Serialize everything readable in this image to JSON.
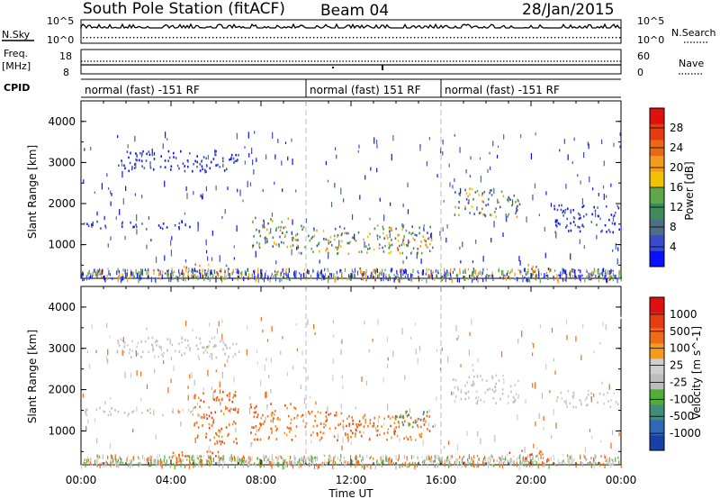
{
  "header": {
    "station": "South Pole Station (fitACF)",
    "beam": "Beam 04",
    "date": "28/Jan/2015"
  },
  "top_panels": {
    "nsky_label": "N.Sky",
    "nsky_ticks": [
      "10^5",
      "10^0"
    ],
    "nsearch_label": "N.Search",
    "nsearch_ticks": [
      "10^5",
      "10^0"
    ],
    "freq_label_1": "Freq.",
    "freq_label_2": "[MHz]",
    "freq_ticks": [
      "18",
      "8"
    ],
    "nave_label": "Nave",
    "nave_ticks": [
      "60",
      "0"
    ],
    "cpid_label": "CPID",
    "cpid_segments": [
      {
        "label": "normal (fast) -151 RF",
        "start_hour": 0,
        "end_hour": 10
      },
      {
        "label": "normal (fast) 151 RF",
        "start_hour": 10,
        "end_hour": 16
      },
      {
        "label": "normal (fast) -151 RF",
        "start_hour": 16,
        "end_hour": 24
      }
    ]
  },
  "chart_data": [
    {
      "type": "heatmap",
      "name": "Power",
      "ylabel": "Slant Range [km]",
      "xlabel": "",
      "x_range_hours": [
        0,
        24
      ],
      "ylim": [
        180,
        4500
      ],
      "yticks": [
        "1000",
        "2000",
        "3000",
        "4000"
      ],
      "colorbar_label": "Power [dB]",
      "colorbar_ticks": [
        "28",
        "24",
        "20",
        "16",
        "12",
        "8",
        "4"
      ],
      "colorbar_colors": [
        "#0a10ff",
        "#3a4bd0",
        "#4f6e86",
        "#3d8a5a",
        "#5fa84a",
        "#f2c200",
        "#f59b1c",
        "#ea6a13",
        "#ea3a12",
        "#e01010"
      ],
      "approx_echo_regions": [
        {
          "t_start": 0.1,
          "t_end": 5.0,
          "range_start": 1400,
          "range_end": 1600,
          "level": "weak"
        },
        {
          "t_start": 1.5,
          "t_end": 7.0,
          "range_start": 2800,
          "range_end": 3300,
          "level": "weak"
        },
        {
          "t_start": 4.0,
          "t_end": 6.5,
          "range_start": 350,
          "range_end": 550,
          "level": "strong"
        },
        {
          "t_start": 7.5,
          "t_end": 9.5,
          "range_start": 900,
          "range_end": 1700,
          "level": "medium"
        },
        {
          "t_start": 9.5,
          "t_end": 15.5,
          "range_start": 800,
          "range_end": 1500,
          "level": "medium"
        },
        {
          "t_start": 14.0,
          "t_end": 15.8,
          "range_start": 900,
          "range_end": 1200,
          "level": "strong"
        },
        {
          "t_start": 16.5,
          "t_end": 19.5,
          "range_start": 1700,
          "range_end": 2400,
          "level": "medium"
        },
        {
          "t_start": 19.0,
          "t_end": 20.5,
          "range_start": 350,
          "range_end": 550,
          "level": "strong"
        },
        {
          "t_start": 21.0,
          "t_end": 23.9,
          "range_start": 1300,
          "range_end": 2000,
          "level": "weak"
        }
      ]
    },
    {
      "type": "heatmap",
      "name": "Velocity",
      "ylabel": "Slant Range [km]",
      "xlabel": "Time UT",
      "x_range_hours": [
        0,
        24
      ],
      "ylim": [
        180,
        4500
      ],
      "yticks": [
        "1000",
        "2000",
        "3000",
        "4000"
      ],
      "xticks": [
        "00:00",
        "04:00",
        "08:00",
        "12:00",
        "16:00",
        "20:00",
        "00:00"
      ],
      "colorbar_label": "Velocity [m s^-1]",
      "colorbar_ticks": [
        "1000",
        "500",
        "100",
        "25",
        "-25",
        "-100",
        "-500",
        "-1000"
      ],
      "colorbar_colors": [
        "#1a3fa8",
        "#2f69b6",
        "#3f8e7a",
        "#4fae3a",
        "#bdbdbd",
        "#cfcfcf",
        "#f59b1c",
        "#ef6b15",
        "#e83d12",
        "#e01010"
      ],
      "approx_echo_regions": [
        {
          "t_start": 0.1,
          "t_end": 5.0,
          "range_start": 1400,
          "range_end": 1600,
          "level": "ground"
        },
        {
          "t_start": 1.5,
          "t_end": 7.0,
          "range_start": 2800,
          "range_end": 3300,
          "level": "ground"
        },
        {
          "t_start": 4.0,
          "t_end": 6.5,
          "range_start": 350,
          "range_end": 550,
          "level": "away"
        },
        {
          "t_start": 5.0,
          "t_end": 7.0,
          "range_start": 700,
          "range_end": 2000,
          "level": "away"
        },
        {
          "t_start": 7.5,
          "t_end": 9.5,
          "range_start": 800,
          "range_end": 1700,
          "level": "away"
        },
        {
          "t_start": 9.5,
          "t_end": 15.5,
          "range_start": 800,
          "range_end": 1500,
          "level": "away"
        },
        {
          "t_start": 14.0,
          "t_end": 15.8,
          "range_start": 1100,
          "range_end": 1500,
          "level": "toward"
        },
        {
          "t_start": 16.5,
          "t_end": 19.5,
          "range_start": 1700,
          "range_end": 2400,
          "level": "ground"
        },
        {
          "t_start": 19.0,
          "t_end": 20.5,
          "range_start": 350,
          "range_end": 550,
          "level": "away"
        },
        {
          "t_start": 21.0,
          "t_end": 23.9,
          "range_start": 1600,
          "range_end": 2000,
          "level": "ground"
        }
      ]
    }
  ]
}
